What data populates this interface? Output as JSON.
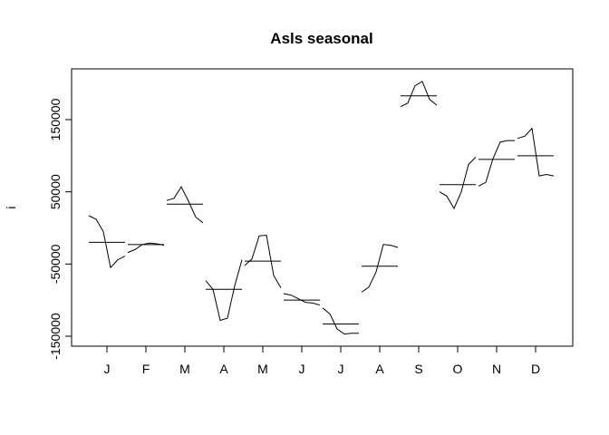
{
  "chart_data": {
    "type": "line",
    "title": "Asls seasonal",
    "xlabel": "",
    "ylabel": "i",
    "categories": [
      "J",
      "F",
      "M",
      "A",
      "M",
      "J",
      "J",
      "A",
      "S",
      "O",
      "N",
      "D"
    ],
    "yticks": [
      -150000,
      -50000,
      50000,
      150000
    ],
    "ytick_labels": [
      "-150000",
      "-50000",
      "50000",
      "150000"
    ],
    "ylim": [
      -150000,
      200000
    ],
    "grid": false,
    "means": [
      -20000,
      -23000,
      33000,
      -85000,
      -46000,
      -100000,
      -133000,
      -53000,
      183000,
      60000,
      95000,
      100000
    ],
    "subseries": [
      [
        17000,
        12000,
        -5000,
        -55000,
        -44000,
        -39000
      ],
      [
        -34000,
        -30000,
        -23000,
        -21000,
        -22000,
        -24000
      ],
      [
        38000,
        41000,
        57000,
        37000,
        15000,
        7000
      ],
      [
        -73000,
        -85000,
        -128000,
        -125000,
        -80000,
        -44000
      ],
      [
        -52000,
        -43000,
        -11000,
        -10000,
        -66000,
        -83000
      ],
      [
        -91000,
        -93000,
        -98000,
        -103000,
        -104000,
        -107000
      ],
      [
        -111000,
        -119000,
        -140000,
        -147000,
        -146000,
        -146000
      ],
      [
        -89000,
        -82000,
        -61000,
        -23000,
        -24000,
        -27000
      ],
      [
        168000,
        173000,
        197000,
        203000,
        178000,
        170000
      ],
      [
        50000,
        44000,
        27000,
        50000,
        88000,
        98000
      ],
      [
        58000,
        63000,
        96000,
        119000,
        121000,
        121000
      ],
      [
        124000,
        127000,
        138000,
        72000,
        74000,
        72000
      ]
    ]
  }
}
